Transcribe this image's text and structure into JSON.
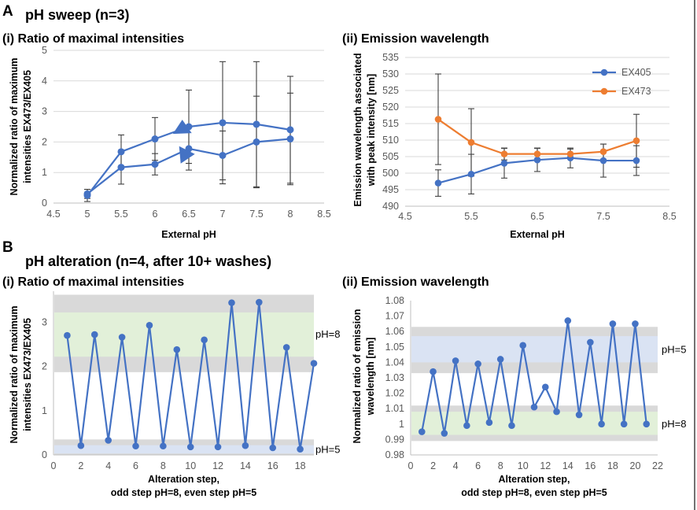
{
  "panel_a": {
    "letter": "A",
    "title": "pH sweep (n=3)",
    "sub_i": "(i) Ratio of maximal intensities",
    "sub_ii": "(ii) Emission wavelength"
  },
  "panel_b": {
    "letter": "B",
    "title": "pH alteration (n=4, after 10+ washes)",
    "sub_i": "(i) Ratio of maximal intensities",
    "sub_ii": "(ii) Emission wavelength"
  },
  "colors": {
    "blue": "#4472C4",
    "orange": "#ED7D31",
    "grid": "#D9D9D9",
    "errbar": "#404040",
    "band_gray": "#D9D9D9",
    "band_green": "#E2F0D9",
    "band_blue": "#DAE3F3"
  },
  "chart_data": [
    {
      "id": "a_i",
      "type": "line",
      "xlabel": "External pH",
      "ylabel_lines": [
        "Normalized ratio of maximum",
        "intensities EX473/EX405"
      ],
      "xlim": [
        4.5,
        8.5
      ],
      "ylim": [
        0,
        5
      ],
      "xticks": [
        "4.5",
        "5",
        "5.5",
        "6",
        "6.5",
        "7",
        "7.5",
        "8",
        "8.5"
      ],
      "yticks": [
        "0",
        "1",
        "2",
        "3",
        "4",
        "5"
      ],
      "series": [
        {
          "name": "upper",
          "x": [
            5,
            5.5,
            6,
            6.5,
            7,
            7.5,
            8
          ],
          "values": [
            0.25,
            1.68,
            2.1,
            2.5,
            2.63,
            2.58,
            2.4
          ],
          "err": [
            0.2,
            0.55,
            0.7,
            1.2,
            2.0,
            2.05,
            1.75
          ]
        },
        {
          "name": "lower",
          "x": [
            5,
            5.5,
            6,
            6.5,
            7,
            7.5,
            8
          ],
          "values": [
            0.3,
            1.17,
            1.27,
            1.78,
            1.56,
            2.0,
            2.1
          ],
          "err": [
            0.15,
            0.55,
            0.35,
            0.7,
            0.8,
            1.5,
            1.5
          ]
        }
      ],
      "arrows": [
        "upper-left",
        "lower-right"
      ]
    },
    {
      "id": "a_ii",
      "type": "line",
      "xlabel": "External pH",
      "ylabel_lines": [
        "Emission wavelength associated",
        "with peak intensity [nm]"
      ],
      "xlim": [
        4.5,
        8.5
      ],
      "ylim": [
        490,
        535
      ],
      "xticks": [
        "4.5",
        "5.5",
        "6.5",
        "7.5",
        "8.5"
      ],
      "yticks": [
        "490",
        "495",
        "500",
        "505",
        "510",
        "515",
        "520",
        "525",
        "530",
        "535"
      ],
      "series": [
        {
          "name": "EX405",
          "x": [
            5,
            5.5,
            6,
            6.5,
            7,
            7.5,
            8
          ],
          "values": [
            497,
            499.7,
            503,
            504,
            504.6,
            503.8,
            503.8
          ],
          "err": [
            4,
            6,
            4.5,
            3.5,
            3,
            5,
            4.5
          ]
        },
        {
          "name": "EX473",
          "x": [
            5,
            5.5,
            6,
            6.5,
            7,
            7.5,
            8
          ],
          "values": [
            516.3,
            509.3,
            505.8,
            505.8,
            505.8,
            506.5,
            509.8
          ],
          "err": [
            13.7,
            10.2,
            1.8,
            1.8,
            1.5,
            2.3,
            8
          ]
        }
      ],
      "legend": [
        "EX405",
        "EX473"
      ]
    },
    {
      "id": "b_i",
      "type": "line",
      "xlabel_lines": [
        "Alteration step,",
        "odd step pH=8, even step pH=5"
      ],
      "ylabel_lines": [
        "Normalized ratio of maximum",
        "intensities EX473/EX405"
      ],
      "xlim": [
        0,
        19
      ],
      "ylim": [
        0,
        3.7
      ],
      "xticks": [
        "0",
        "2",
        "4",
        "6",
        "8",
        "10",
        "12",
        "14",
        "16",
        "18"
      ],
      "yticks": [
        "0",
        "1",
        "2",
        "3"
      ],
      "x": [
        1,
        2,
        3,
        4,
        5,
        6,
        7,
        8,
        9,
        10,
        11,
        12,
        13,
        14,
        15,
        16,
        17,
        18,
        19
      ],
      "values": [
        2.7,
        0.21,
        2.72,
        0.33,
        2.66,
        0.2,
        2.93,
        0.2,
        2.38,
        0.18,
        2.6,
        0.18,
        3.44,
        0.21,
        3.45,
        0.16,
        2.43,
        0.13,
        2.07
      ],
      "bands": [
        {
          "from": 1.87,
          "to": 3.62,
          "color": "gray"
        },
        {
          "from": 2.22,
          "to": 3.22,
          "color": "green"
        },
        {
          "from": 0.0,
          "to": 0.35,
          "color": "gray"
        },
        {
          "from": 0.03,
          "to": 0.22,
          "color": "blue"
        }
      ],
      "band_labels": [
        "pH=8",
        "pH=5"
      ]
    },
    {
      "id": "b_ii",
      "type": "line",
      "xlabel_lines": [
        "Alteration step,",
        "odd step pH=8, even step pH=5"
      ],
      "ylabel_lines": [
        "Normalized ratio of emission",
        "wavelength [nm]"
      ],
      "xlim": [
        0,
        22
      ],
      "ylim": [
        0.98,
        1.08
      ],
      "xticks": [
        "0",
        "2",
        "4",
        "6",
        "8",
        "10",
        "12",
        "14",
        "16",
        "18",
        "20",
        "22"
      ],
      "yticks": [
        "0.98",
        "0.99",
        "1",
        "1.01",
        "1.02",
        "1.03",
        "1.04",
        "1.05",
        "1.06",
        "1.07",
        "1.08"
      ],
      "x": [
        1,
        2,
        3,
        4,
        5,
        6,
        7,
        8,
        9,
        10,
        11,
        12,
        13,
        14,
        15,
        16,
        17,
        18,
        19,
        20,
        21
      ],
      "values": [
        0.995,
        1.034,
        0.994,
        1.041,
        0.999,
        1.039,
        1.001,
        1.042,
        0.999,
        1.051,
        1.011,
        1.024,
        1.008,
        1.067,
        1.006,
        1.053,
        1.0,
        1.065,
        1.0,
        1.065,
        1.0
      ],
      "bands": [
        {
          "from": 1.033,
          "to": 1.063,
          "color": "gray"
        },
        {
          "from": 1.04,
          "to": 1.057,
          "color": "blue"
        },
        {
          "from": 0.989,
          "to": 1.012,
          "color": "gray"
        },
        {
          "from": 0.993,
          "to": 1.008,
          "color": "green"
        }
      ],
      "band_labels": [
        "pH=5",
        "pH=8"
      ]
    }
  ]
}
